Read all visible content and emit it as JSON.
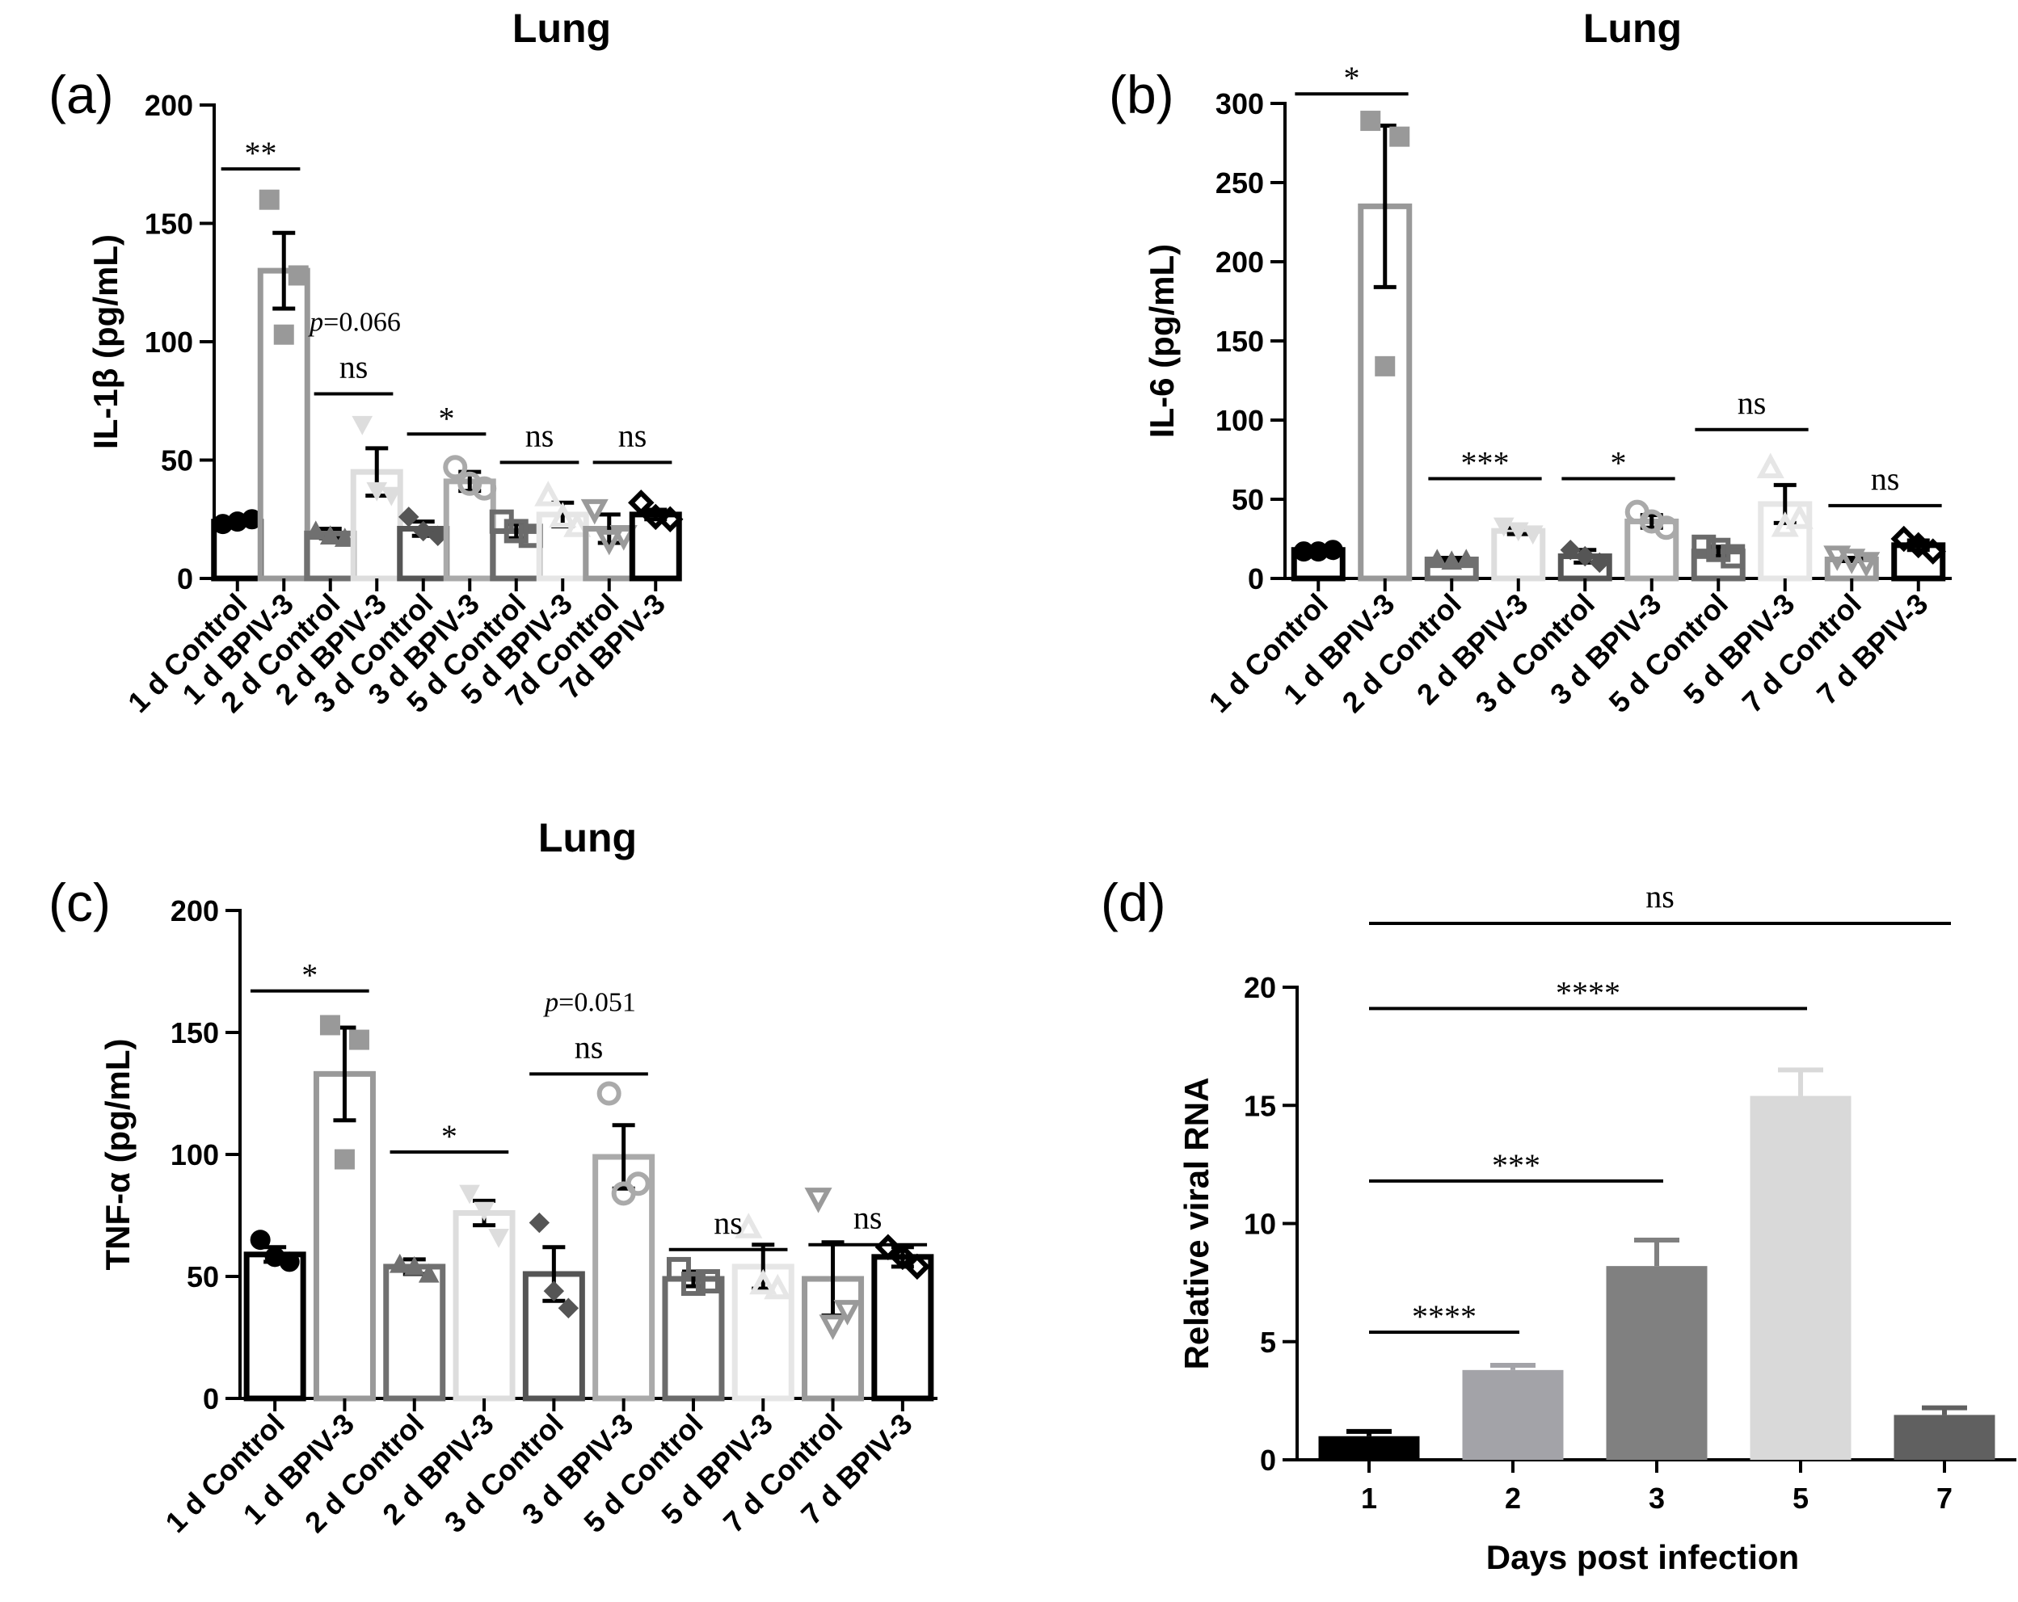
{
  "chart_data": [
    {
      "panel": "(a)",
      "type": "bar",
      "title": "Lung",
      "ylabel": "IL-1β (pg/mL)",
      "xlabel": "",
      "ylim": [
        0,
        200
      ],
      "yticks": [
        0,
        50,
        100,
        150,
        200
      ],
      "categories": [
        "1 d Control",
        "1 d BPIV-3",
        "2 d Control",
        "2 d BPIV-3",
        "3 d Control",
        "3 d BPIV-3",
        "5 d Control",
        "5 d BPIV-3",
        "7d Control",
        "7d BPIV-3"
      ],
      "values": [
        24,
        130,
        19,
        45,
        21,
        41,
        20,
        27,
        21,
        27
      ],
      "errors": [
        1,
        16,
        2,
        10,
        3,
        4,
        3,
        5,
        6,
        2
      ],
      "points": [
        [
          23,
          25,
          24
        ],
        [
          160,
          128,
          103
        ],
        [
          20,
          17,
          18
        ],
        [
          65,
          35,
          37
        ],
        [
          26,
          18,
          20
        ],
        [
          47,
          38,
          40
        ],
        [
          24,
          18,
          20
        ],
        [
          35,
          22,
          26
        ],
        [
          29,
          18,
          16
        ],
        [
          32,
          25,
          26
        ]
      ],
      "colors": [
        "#000000",
        "#999999",
        "#707070",
        "#dddddd",
        "#555555",
        "#aaaaaa",
        "#6b6b6b",
        "#e6e6e6",
        "#9a9a9a",
        "#000000"
      ],
      "markers": [
        "circle",
        "square",
        "triangle",
        "triangle-down",
        "diamond",
        "circle-open",
        "square-open",
        "triangle-open",
        "triangle-down-open",
        "diamond-open"
      ],
      "annotations": [
        {
          "from": 0,
          "to": 1,
          "label": "**",
          "y": 173
        },
        {
          "from": 2,
          "to": 3,
          "label": "ns",
          "y": 78,
          "pvalue_prefix": "p",
          "pvalue": "=0.066"
        },
        {
          "from": 4,
          "to": 5,
          "label": "*",
          "y": 61
        },
        {
          "from": 6,
          "to": 7,
          "label": "ns",
          "y": 49
        },
        {
          "from": 8,
          "to": 9,
          "label": "ns",
          "y": 49
        }
      ]
    },
    {
      "panel": "(b)",
      "type": "bar",
      "title": "Lung",
      "ylabel": "IL-6 (pg/mL)",
      "xlabel": "",
      "ylim": [
        0,
        300
      ],
      "yticks": [
        0,
        50,
        100,
        150,
        200,
        250,
        300
      ],
      "categories": [
        "1 d Control",
        "1 d BPIV-3",
        "2 d Control",
        "2 d BPIV-3",
        "3 d Control",
        "3 d BPIV-3",
        "5 d Control",
        "5 d BPIV-3",
        "7 d Control",
        "7 d BPIV-3"
      ],
      "values": [
        18,
        235,
        12,
        30,
        14,
        36,
        17,
        47,
        12,
        21
      ],
      "errors": [
        1,
        51,
        1,
        2,
        4,
        4,
        3,
        12,
        1,
        3
      ],
      "points": [
        [
          17,
          18,
          17
        ],
        [
          289,
          279,
          134
        ],
        [
          12,
          12,
          11
        ],
        [
          33,
          28,
          30
        ],
        [
          18,
          10,
          14
        ],
        [
          42,
          32,
          36
        ],
        [
          20,
          14,
          18
        ],
        [
          70,
          38,
          33
        ],
        [
          14,
          10,
          12
        ],
        [
          25,
          17,
          21
        ]
      ],
      "colors": [
        "#000000",
        "#999999",
        "#707070",
        "#dddddd",
        "#555555",
        "#aaaaaa",
        "#6b6b6b",
        "#e6e6e6",
        "#9a9a9a",
        "#000000"
      ],
      "markers": [
        "circle",
        "square",
        "triangle",
        "triangle-down",
        "diamond",
        "circle-open",
        "square-open",
        "triangle-open",
        "triangle-down-open",
        "diamond-open"
      ],
      "annotations": [
        {
          "from": 0,
          "to": 1,
          "label": "*",
          "y": 306
        },
        {
          "from": 2,
          "to": 3,
          "label": "***",
          "y": 63
        },
        {
          "from": 4,
          "to": 5,
          "label": "*",
          "y": 63
        },
        {
          "from": 6,
          "to": 7,
          "label": "ns",
          "y": 94
        },
        {
          "from": 8,
          "to": 9,
          "label": "ns",
          "y": 46
        }
      ]
    },
    {
      "panel": "(c)",
      "type": "bar",
      "title": "Lung",
      "ylabel": "TNF-α (pg/mL)",
      "xlabel": "",
      "ylim": [
        0,
        200
      ],
      "yticks": [
        0,
        50,
        100,
        150,
        200
      ],
      "categories": [
        "1 d Control",
        "1 d BPIV-3",
        "2 d Control",
        "2 d BPIV-3",
        "3 d Control",
        "3 d BPIV-3",
        "5 d Control",
        "5 d BPIV-3",
        "7 d Control",
        "7 d BPIV-3"
      ],
      "values": [
        59,
        133,
        54,
        76,
        51,
        99,
        49,
        54,
        49,
        58
      ],
      "errors": [
        3,
        19,
        3,
        5,
        11,
        13,
        3,
        9,
        15,
        4
      ],
      "points": [
        [
          65,
          56,
          58
        ],
        [
          153,
          147,
          98
        ],
        [
          55,
          51,
          54
        ],
        [
          84,
          66,
          77
        ],
        [
          72,
          37,
          44
        ],
        [
          125,
          88,
          84
        ],
        [
          53,
          48,
          47
        ],
        [
          70,
          45,
          47
        ],
        [
          82,
          36,
          30
        ],
        [
          62,
          54,
          58
        ]
      ],
      "colors": [
        "#000000",
        "#999999",
        "#707070",
        "#dddddd",
        "#555555",
        "#aaaaaa",
        "#6b6b6b",
        "#e6e6e6",
        "#9a9a9a",
        "#000000"
      ],
      "markers": [
        "circle",
        "square",
        "triangle",
        "triangle-down",
        "diamond",
        "circle-open",
        "square-open",
        "triangle-open",
        "triangle-down-open",
        "diamond-open"
      ],
      "annotations": [
        {
          "from": 0,
          "to": 1,
          "label": "*",
          "y": 167
        },
        {
          "from": 2,
          "to": 3,
          "label": "*",
          "y": 101
        },
        {
          "from": 4,
          "to": 5,
          "label": "ns",
          "y": 133,
          "pvalue_prefix": "p",
          "pvalue": "=0.051"
        },
        {
          "from": 6,
          "to": 7,
          "label": "ns",
          "y": 61
        },
        {
          "from": 8,
          "to": 9,
          "label": "ns",
          "y": 63
        }
      ]
    },
    {
      "panel": "(d)",
      "type": "bar",
      "title": "",
      "ylabel": "Relative viral RNA",
      "xlabel": "Days post infection",
      "ylim": [
        0,
        20
      ],
      "yticks": [
        0,
        5,
        10,
        15,
        20
      ],
      "categories": [
        "1",
        "2",
        "3",
        "5",
        "7"
      ],
      "values": [
        1.0,
        3.8,
        8.2,
        15.4,
        1.9
      ],
      "errors": [
        0.2,
        0.2,
        1.1,
        1.1,
        0.3
      ],
      "colors": [
        "#000000",
        "#a3a3a8",
        "#808080",
        "#d9d9d9",
        "#606060"
      ],
      "annotations": [
        {
          "from": 0,
          "to": 1,
          "label": "****",
          "y": 5.4
        },
        {
          "from": 0,
          "to": 2,
          "label": "***",
          "y": 11.8
        },
        {
          "from": 0,
          "to": 3,
          "label": "****",
          "y": 19.1
        },
        {
          "from": 0,
          "to": 4,
          "label": "ns",
          "y": 22.7
        }
      ]
    }
  ]
}
